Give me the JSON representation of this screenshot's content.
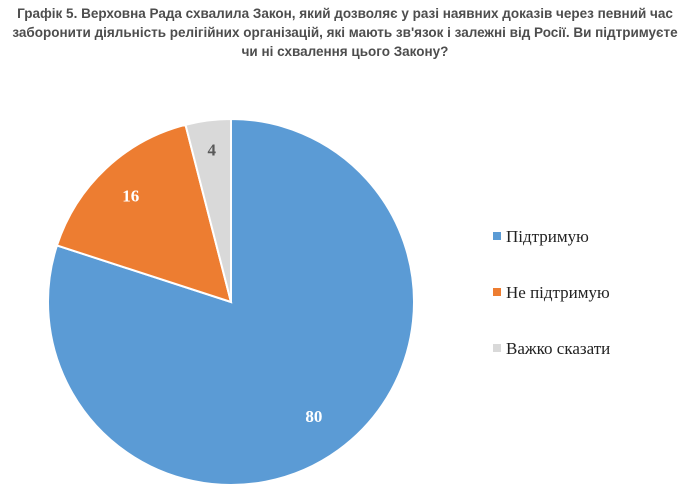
{
  "title": "Графік 5. Верховна Рада схвалила Закон, який дозволяє у разі наявних доказів через певний час заборонити діяльність релігійних організацій, які мають зв'язок і залежні від Росії. Ви підтримуєте чи ні схвалення цього Закону?",
  "chart_data": {
    "type": "pie",
    "categories": [
      "Підтримую",
      "Не підтримую",
      "Важко сказати"
    ],
    "values": [
      80,
      16,
      4
    ],
    "colors": [
      "#5b9bd5",
      "#ed7d31",
      "#d9d9d9"
    ],
    "label_colors": [
      "#ffffff",
      "#ffffff",
      "#595959"
    ],
    "start_angle": "12 o'clock, clockwise",
    "legend_position": "right"
  }
}
